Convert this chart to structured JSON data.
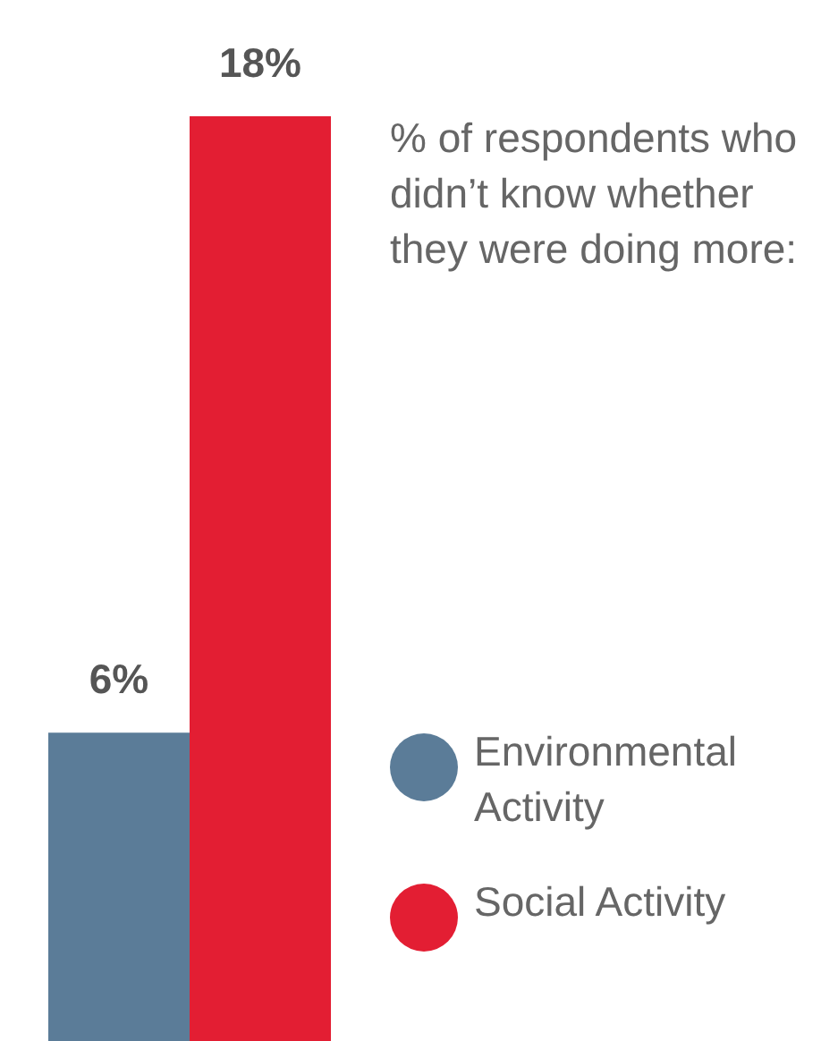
{
  "chart_data": {
    "type": "bar",
    "title": "% of respondents who didn’t know whether they were doing more:",
    "categories": [
      null
    ],
    "legend": "right",
    "series": [
      {
        "name": "Environmental Activity",
        "color": "#5b7c98",
        "values": [
          6
        ],
        "value_labels": [
          "6%"
        ]
      },
      {
        "name": "Social Activity",
        "color": "#e31e33",
        "values": [
          18
        ],
        "value_labels": [
          "18%"
        ]
      }
    ]
  }
}
